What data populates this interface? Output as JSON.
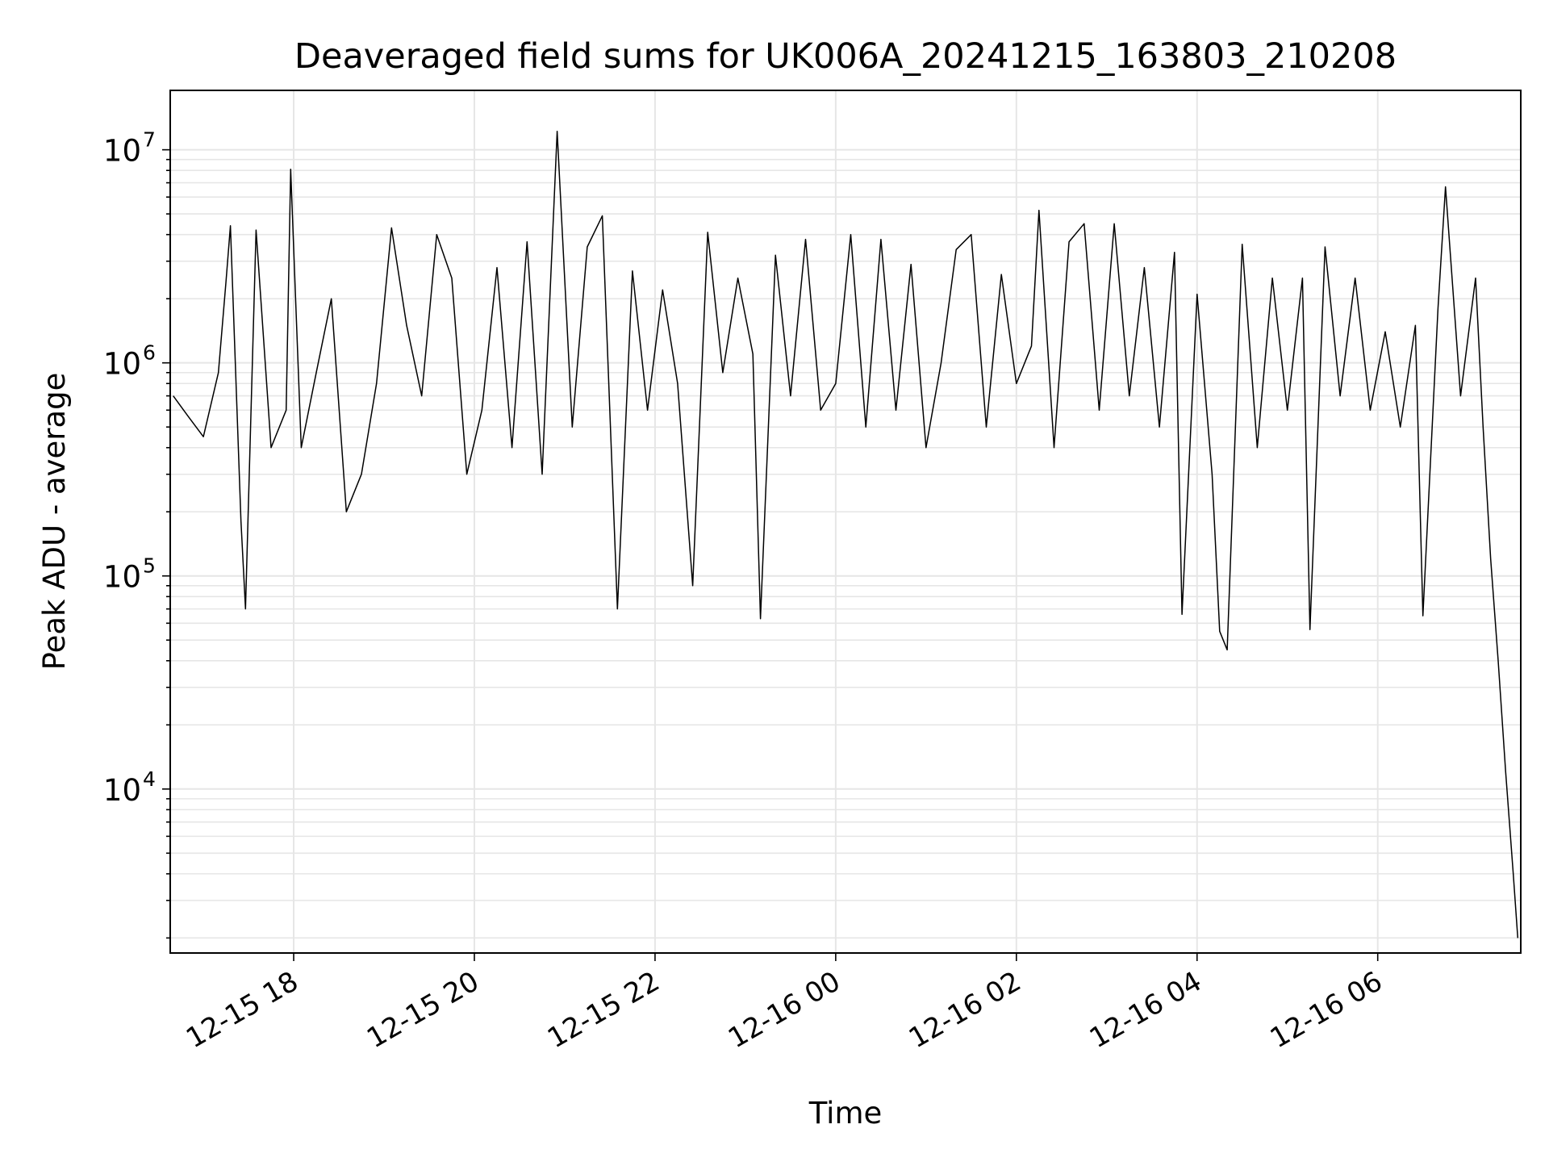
{
  "chart_data": {
    "type": "line",
    "title": "Deaveraged field sums for UK006A_20241215_163803_210208",
    "xlabel": "Time",
    "ylabel": "Peak ADU - average",
    "yscale": "log",
    "ylim": [
      1700,
      19000000
    ],
    "xlim": [
      "2024-12-15 16:38",
      "2024-12-16 07:35"
    ],
    "grid": true,
    "line_color": "#000000",
    "grid_color": "#e6e6e6",
    "x_ticks": [
      {
        "t": "2024-12-15 18:00",
        "label": "12-15 18"
      },
      {
        "t": "2024-12-15 20:00",
        "label": "12-15 20"
      },
      {
        "t": "2024-12-15 22:00",
        "label": "12-15 22"
      },
      {
        "t": "2024-12-16 00:00",
        "label": "12-16 00"
      },
      {
        "t": "2024-12-16 02:00",
        "label": "12-16 02"
      },
      {
        "t": "2024-12-16 04:00",
        "label": "12-16 04"
      },
      {
        "t": "2024-12-16 06:00",
        "label": "12-16 06"
      }
    ],
    "y_ticks": [
      {
        "value": 10000,
        "base": "10",
        "exp": "4"
      },
      {
        "value": 100000,
        "base": "10",
        "exp": "5"
      },
      {
        "value": 1000000,
        "base": "10",
        "exp": "6"
      },
      {
        "value": 10000000,
        "base": "10",
        "exp": "7"
      }
    ],
    "series": [
      {
        "points": [
          [
            "2024-12-15 16:40",
            700000
          ],
          [
            "2024-12-15 16:50",
            560000
          ],
          [
            "2024-12-15 17:00",
            450000
          ],
          [
            "2024-12-15 17:10",
            900000
          ],
          [
            "2024-12-15 17:15",
            2400000
          ],
          [
            "2024-12-15 17:18",
            4400000
          ],
          [
            "2024-12-15 17:25",
            180000
          ],
          [
            "2024-12-15 17:28",
            70000
          ],
          [
            "2024-12-15 17:35",
            4200000
          ],
          [
            "2024-12-15 17:45",
            400000
          ],
          [
            "2024-12-15 17:55",
            600000
          ],
          [
            "2024-12-15 17:58",
            8100000
          ],
          [
            "2024-12-15 18:05",
            400000
          ],
          [
            "2024-12-15 18:15",
            900000
          ],
          [
            "2024-12-15 18:25",
            2000000
          ],
          [
            "2024-12-15 18:35",
            200000
          ],
          [
            "2024-12-15 18:45",
            300000
          ],
          [
            "2024-12-15 18:55",
            800000
          ],
          [
            "2024-12-15 19:05",
            4300000
          ],
          [
            "2024-12-15 19:15",
            1500000
          ],
          [
            "2024-12-15 19:25",
            700000
          ],
          [
            "2024-12-15 19:35",
            4000000
          ],
          [
            "2024-12-15 19:45",
            2500000
          ],
          [
            "2024-12-15 19:55",
            300000
          ],
          [
            "2024-12-15 20:05",
            600000
          ],
          [
            "2024-12-15 20:15",
            2800000
          ],
          [
            "2024-12-15 20:25",
            400000
          ],
          [
            "2024-12-15 20:35",
            3700000
          ],
          [
            "2024-12-15 20:45",
            300000
          ],
          [
            "2024-12-15 20:55",
            12200000
          ],
          [
            "2024-12-15 21:05",
            500000
          ],
          [
            "2024-12-15 21:15",
            3500000
          ],
          [
            "2024-12-15 21:25",
            4900000
          ],
          [
            "2024-12-15 21:35",
            70000
          ],
          [
            "2024-12-15 21:45",
            2700000
          ],
          [
            "2024-12-15 21:55",
            600000
          ],
          [
            "2024-12-15 22:05",
            2200000
          ],
          [
            "2024-12-15 22:15",
            800000
          ],
          [
            "2024-12-15 22:25",
            90000
          ],
          [
            "2024-12-15 22:35",
            4100000
          ],
          [
            "2024-12-15 22:45",
            900000
          ],
          [
            "2024-12-15 22:55",
            2500000
          ],
          [
            "2024-12-15 23:05",
            1100000
          ],
          [
            "2024-12-15 23:10",
            63000
          ],
          [
            "2024-12-15 23:20",
            3200000
          ],
          [
            "2024-12-15 23:30",
            700000
          ],
          [
            "2024-12-15 23:40",
            3800000
          ],
          [
            "2024-12-15 23:50",
            600000
          ],
          [
            "2024-12-16 00:00",
            800000
          ],
          [
            "2024-12-16 00:10",
            4000000
          ],
          [
            "2024-12-16 00:20",
            500000
          ],
          [
            "2024-12-16 00:30",
            3800000
          ],
          [
            "2024-12-16 00:40",
            600000
          ],
          [
            "2024-12-16 00:50",
            2900000
          ],
          [
            "2024-12-16 01:00",
            400000
          ],
          [
            "2024-12-16 01:10",
            1000000
          ],
          [
            "2024-12-16 01:20",
            3400000
          ],
          [
            "2024-12-16 01:30",
            4000000
          ],
          [
            "2024-12-16 01:40",
            500000
          ],
          [
            "2024-12-16 01:50",
            2600000
          ],
          [
            "2024-12-16 02:00",
            800000
          ],
          [
            "2024-12-16 02:10",
            1200000
          ],
          [
            "2024-12-16 02:15",
            5200000
          ],
          [
            "2024-12-16 02:25",
            400000
          ],
          [
            "2024-12-16 02:35",
            3700000
          ],
          [
            "2024-12-16 02:45",
            4500000
          ],
          [
            "2024-12-16 02:55",
            600000
          ],
          [
            "2024-12-16 03:05",
            4500000
          ],
          [
            "2024-12-16 03:15",
            700000
          ],
          [
            "2024-12-16 03:25",
            2800000
          ],
          [
            "2024-12-16 03:35",
            500000
          ],
          [
            "2024-12-16 03:45",
            3300000
          ],
          [
            "2024-12-16 03:50",
            66000
          ],
          [
            "2024-12-16 04:00",
            2100000
          ],
          [
            "2024-12-16 04:10",
            300000
          ],
          [
            "2024-12-16 04:15",
            55000
          ],
          [
            "2024-12-16 04:20",
            45000
          ],
          [
            "2024-12-16 04:30",
            3600000
          ],
          [
            "2024-12-16 04:40",
            400000
          ],
          [
            "2024-12-16 04:50",
            2500000
          ],
          [
            "2024-12-16 05:00",
            600000
          ],
          [
            "2024-12-16 05:10",
            2500000
          ],
          [
            "2024-12-16 05:15",
            56000
          ],
          [
            "2024-12-16 05:25",
            3500000
          ],
          [
            "2024-12-16 05:35",
            700000
          ],
          [
            "2024-12-16 05:45",
            2500000
          ],
          [
            "2024-12-16 05:55",
            600000
          ],
          [
            "2024-12-16 06:05",
            1400000
          ],
          [
            "2024-12-16 06:15",
            500000
          ],
          [
            "2024-12-16 06:25",
            1500000
          ],
          [
            "2024-12-16 06:30",
            65000
          ],
          [
            "2024-12-16 06:40",
            1800000
          ],
          [
            "2024-12-16 06:45",
            6700000
          ],
          [
            "2024-12-16 06:55",
            700000
          ],
          [
            "2024-12-16 07:05",
            2500000
          ],
          [
            "2024-12-16 07:10",
            500000
          ],
          [
            "2024-12-16 07:15",
            120000
          ],
          [
            "2024-12-16 07:20",
            40000
          ],
          [
            "2024-12-16 07:25",
            12000
          ],
          [
            "2024-12-16 07:30",
            4000
          ],
          [
            "2024-12-16 07:33",
            2000
          ]
        ]
      }
    ]
  }
}
